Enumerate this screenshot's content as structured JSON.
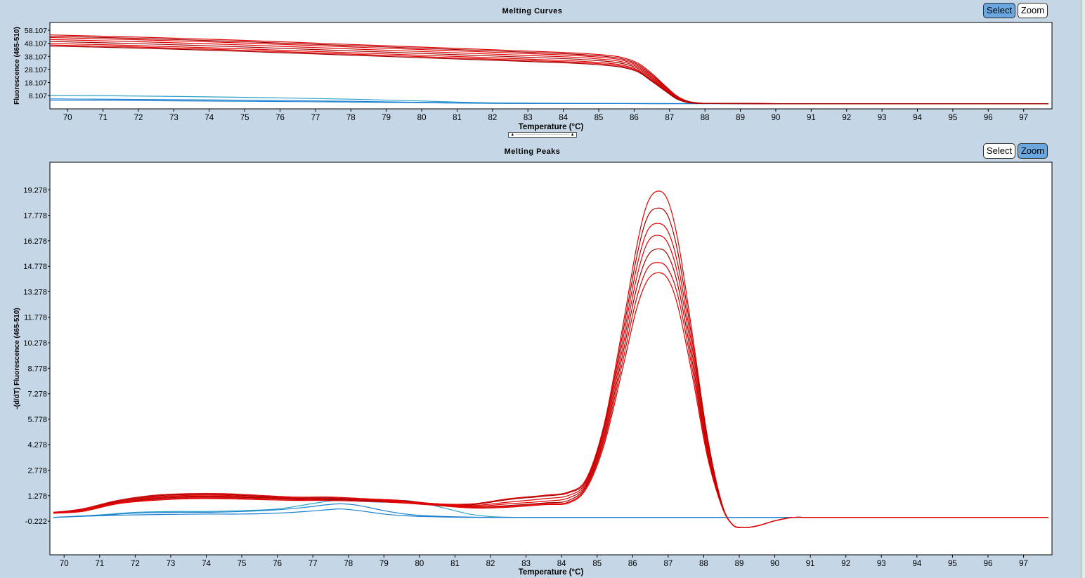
{
  "panels": {
    "curves": {
      "title": "Melting Curves",
      "select_label": "Select",
      "zoom_label": "Zoom",
      "active_mode": "select"
    },
    "peaks": {
      "title": "Melting Peaks",
      "select_label": "Select",
      "zoom_label": "Zoom",
      "active_mode": "zoom"
    }
  },
  "colors": {
    "sample": "#e00000",
    "sample_dark": "#a00000",
    "control": "#1a7fd0",
    "control_light": "#2aa0c8"
  },
  "chart_data": [
    {
      "type": "line",
      "title": "Melting Curves",
      "xlabel": "Temperature (°C)",
      "ylabel": "Fluorescence (465-510)",
      "xlim": [
        69.5,
        97.8
      ],
      "ylim": [
        -2,
        64
      ],
      "x_ticks": [
        70,
        71,
        72,
        73,
        74,
        75,
        76,
        77,
        78,
        79,
        80,
        81,
        82,
        83,
        84,
        85,
        86,
        87,
        88,
        89,
        90,
        91,
        92,
        93,
        94,
        95,
        96,
        97
      ],
      "y_ticks": [
        "8.107",
        "18.107",
        "28.107",
        "38.107",
        "48.107",
        "58.107"
      ],
      "y_tick_values": [
        8.107,
        18.107,
        28.107,
        38.107,
        48.107,
        58.107
      ],
      "grid": false,
      "series_groups": [
        {
          "group": "samples",
          "x": [
            69.5,
            72,
            75,
            78,
            81,
            84,
            85,
            85.6,
            86.1,
            86.5,
            86.9,
            87.2,
            87.5,
            87.8,
            88.2,
            90,
            92,
            97.7
          ],
          "series": [
            {
              "values": [
                54.5,
                52.8,
                50.3,
                47.2,
                44.2,
                41.1,
                39.5,
                37.6,
                33,
                25,
                15,
                8,
                4,
                2.6,
                2.2,
                2.0,
                2.0,
                2.0
              ]
            },
            {
              "values": [
                53.5,
                51.8,
                49.3,
                46.3,
                43.3,
                40.2,
                38.5,
                36.6,
                32,
                24,
                14.5,
                7.6,
                3.8,
                2.5,
                2.2,
                2.0,
                2.0,
                2.0
              ]
            },
            {
              "values": [
                52.5,
                50.8,
                48.3,
                45.3,
                42.3,
                39.2,
                37.5,
                35.6,
                31,
                23,
                13.8,
                7.2,
                3.6,
                2.4,
                2.2,
                2.0,
                2.0,
                2.0
              ]
            },
            {
              "values": [
                51.0,
                49.3,
                46.8,
                43.8,
                40.8,
                37.8,
                36.1,
                34.3,
                30,
                22,
                13.2,
                6.8,
                3.4,
                2.4,
                2.1,
                2.0,
                2.0,
                2.0
              ]
            },
            {
              "values": [
                49.5,
                47.8,
                45.3,
                42.3,
                39.4,
                36.4,
                34.8,
                33.0,
                29,
                21,
                12.5,
                6.4,
                3.2,
                2.3,
                2.1,
                2.0,
                2.0,
                2.0
              ]
            },
            {
              "values": [
                48.0,
                46.3,
                43.8,
                40.9,
                38.0,
                35.0,
                33.4,
                31.7,
                27.8,
                20,
                12,
                6.0,
                3.0,
                2.3,
                2.1,
                2.0,
                2.0,
                2.0
              ]
            },
            {
              "values": [
                46.8,
                45.2,
                42.7,
                39.8,
                36.9,
                34.0,
                32.5,
                30.8,
                27,
                19.5,
                11.5,
                5.8,
                3.0,
                2.2,
                2.1,
                2.0,
                2.0,
                2.0
              ]
            },
            {
              "values": [
                46.0,
                44.4,
                41.9,
                39.0,
                36.1,
                33.2,
                31.7,
                30.0,
                26.3,
                19,
                11.2,
                5.6,
                2.9,
                2.2,
                2.1,
                2.0,
                2.0,
                2.0
              ]
            }
          ]
        },
        {
          "group": "controls",
          "x": [
            69.5,
            72,
            75,
            78,
            80,
            81,
            82,
            84,
            88,
            92,
            97.7
          ],
          "series": [
            {
              "values": [
                8.4,
                7.8,
                6.8,
                5.4,
                4.0,
                3.2,
                2.6,
                2.2,
                2.0,
                2.0,
                2.0
              ]
            },
            {
              "values": [
                5.6,
                5.2,
                4.6,
                3.8,
                3.0,
                2.6,
                2.3,
                2.1,
                2.0,
                2.0,
                2.0
              ]
            },
            {
              "values": [
                4.6,
                4.3,
                3.8,
                3.2,
                2.7,
                2.4,
                2.2,
                2.1,
                2.0,
                2.0,
                2.0
              ]
            }
          ]
        }
      ]
    },
    {
      "type": "line",
      "title": "Melting Peaks",
      "xlabel": "Temperature (°C)",
      "ylabel": "-(d/dT) Fluorescence (465-510)",
      "xlim": [
        69.6,
        97.8
      ],
      "ylim": [
        -2.2,
        20.9
      ],
      "x_ticks": [
        70,
        71,
        72,
        73,
        74,
        75,
        76,
        77,
        78,
        79,
        80,
        81,
        82,
        83,
        84,
        85,
        86,
        87,
        88,
        89,
        90,
        91,
        92,
        93,
        94,
        95,
        96,
        97
      ],
      "y_ticks": [
        "-0.222",
        "1.278",
        "2.778",
        "4.278",
        "5.778",
        "7.278",
        "8.778",
        "10.278",
        "11.778",
        "13.278",
        "14.778",
        "16.278",
        "17.778",
        "19.278"
      ],
      "y_tick_values": [
        -0.222,
        1.278,
        2.778,
        4.278,
        5.778,
        7.278,
        8.778,
        10.278,
        11.778,
        13.278,
        14.778,
        16.278,
        17.778,
        19.278
      ],
      "grid": false,
      "series_groups": [
        {
          "group": "samples",
          "x": [
            69.7,
            70.5,
            71.5,
            72.5,
            73.5,
            74.5,
            75.5,
            76.5,
            77.5,
            78.5,
            79.5,
            80.5,
            81.5,
            82.5,
            83.5,
            84.2,
            84.7,
            85.2,
            85.7,
            86.1,
            86.4,
            86.7,
            87,
            87.3,
            87.7,
            88.1,
            88.5,
            88.8,
            89.1,
            89.5,
            90,
            90.5,
            91,
            92,
            97.7
          ],
          "series": [
            {
              "values": [
                0.3,
                0.5,
                1.0,
                1.3,
                1.4,
                1.4,
                1.3,
                1.2,
                1.2,
                1.1,
                1.0,
                0.8,
                0.8,
                1.1,
                1.3,
                1.5,
                2.3,
                5.5,
                11,
                15.8,
                18.4,
                19.2,
                18.6,
                16,
                10.5,
                4.8,
                0.9,
                -0.4,
                -0.6,
                -0.5,
                -0.2,
                0,
                0,
                0,
                0
              ]
            },
            {
              "values": [
                0.25,
                0.45,
                0.95,
                1.25,
                1.35,
                1.35,
                1.25,
                1.15,
                1.15,
                1.05,
                0.95,
                0.75,
                0.75,
                1.05,
                1.25,
                1.45,
                2.2,
                5.3,
                10.6,
                15.2,
                17.6,
                18.2,
                17.7,
                15.3,
                10.1,
                4.6,
                0.85,
                -0.4,
                -0.6,
                -0.5,
                -0.2,
                0,
                0,
                0,
                0
              ]
            },
            {
              "values": [
                0.3,
                0.45,
                0.9,
                1.2,
                1.3,
                1.3,
                1.2,
                1.15,
                1.1,
                1.05,
                0.95,
                0.8,
                0.7,
                0.9,
                1.1,
                1.3,
                2.1,
                5.1,
                10.2,
                14.6,
                16.8,
                17.3,
                16.8,
                14.6,
                9.7,
                4.4,
                0.8,
                -0.4,
                -0.6,
                -0.5,
                -0.2,
                0,
                0,
                0,
                0
              ]
            },
            {
              "values": [
                0.3,
                0.4,
                0.9,
                1.15,
                1.25,
                1.25,
                1.2,
                1.1,
                1.1,
                1.0,
                0.95,
                0.8,
                0.65,
                0.8,
                0.95,
                1.15,
                2.0,
                4.9,
                9.8,
                14.0,
                16.1,
                16.6,
                16.1,
                14.0,
                9.3,
                4.2,
                0.8,
                -0.4,
                -0.6,
                -0.5,
                -0.2,
                0,
                0,
                0,
                0
              ]
            },
            {
              "values": [
                0.25,
                0.4,
                0.85,
                1.1,
                1.2,
                1.2,
                1.15,
                1.1,
                1.05,
                1.0,
                0.9,
                0.75,
                0.6,
                0.7,
                0.85,
                1.0,
                1.9,
                4.7,
                9.4,
                13.4,
                15.3,
                15.8,
                15.4,
                13.4,
                8.9,
                4.0,
                0.75,
                -0.4,
                -0.6,
                -0.5,
                -0.2,
                0,
                0,
                0,
                0
              ]
            },
            {
              "values": [
                0.3,
                0.4,
                0.85,
                1.05,
                1.15,
                1.15,
                1.1,
                1.05,
                1.0,
                0.95,
                0.9,
                0.75,
                0.6,
                0.65,
                0.8,
                0.9,
                1.8,
                4.5,
                9.0,
                12.8,
                14.6,
                15.0,
                14.6,
                12.8,
                8.5,
                3.8,
                0.7,
                -0.4,
                -0.6,
                -0.5,
                -0.2,
                0,
                0,
                0,
                0
              ]
            },
            {
              "values": [
                0.25,
                0.35,
                0.8,
                1.0,
                1.1,
                1.1,
                1.05,
                1.0,
                1.0,
                0.95,
                0.85,
                0.7,
                0.55,
                0.6,
                0.75,
                0.85,
                1.7,
                4.3,
                8.6,
                12.2,
                13.9,
                14.4,
                14.0,
                12.2,
                8.1,
                3.6,
                0.7,
                -0.4,
                -0.6,
                -0.5,
                -0.2,
                0,
                0,
                0,
                0
              ]
            }
          ]
        },
        {
          "group": "controls",
          "x": [
            69.7,
            71,
            72,
            73,
            74,
            75,
            76,
            76.8,
            77.4,
            77.8,
            78.3,
            79,
            79.6,
            80.2,
            80.8,
            81.4,
            82,
            83,
            85,
            88,
            91,
            97.7
          ],
          "series": [
            {
              "values": [
                0,
                0.15,
                0.3,
                0.35,
                0.35,
                0.4,
                0.5,
                0.75,
                0.95,
                1.0,
                0.95,
                0.9,
                1.0,
                0.8,
                0.5,
                0.2,
                0.05,
                0,
                0,
                0,
                0,
                0
              ]
            },
            {
              "values": [
                0,
                0.12,
                0.25,
                0.3,
                0.3,
                0.35,
                0.45,
                0.6,
                0.75,
                0.8,
                0.7,
                0.4,
                0.2,
                0.1,
                0.05,
                0.02,
                0,
                0,
                0,
                0,
                0,
                0
              ]
            },
            {
              "values": [
                0,
                0.1,
                0.15,
                0.18,
                0.2,
                0.2,
                0.25,
                0.35,
                0.45,
                0.5,
                0.4,
                0.2,
                0.1,
                0.05,
                0.02,
                0,
                0,
                0,
                0,
                0,
                0,
                0
              ]
            }
          ]
        }
      ]
    }
  ]
}
